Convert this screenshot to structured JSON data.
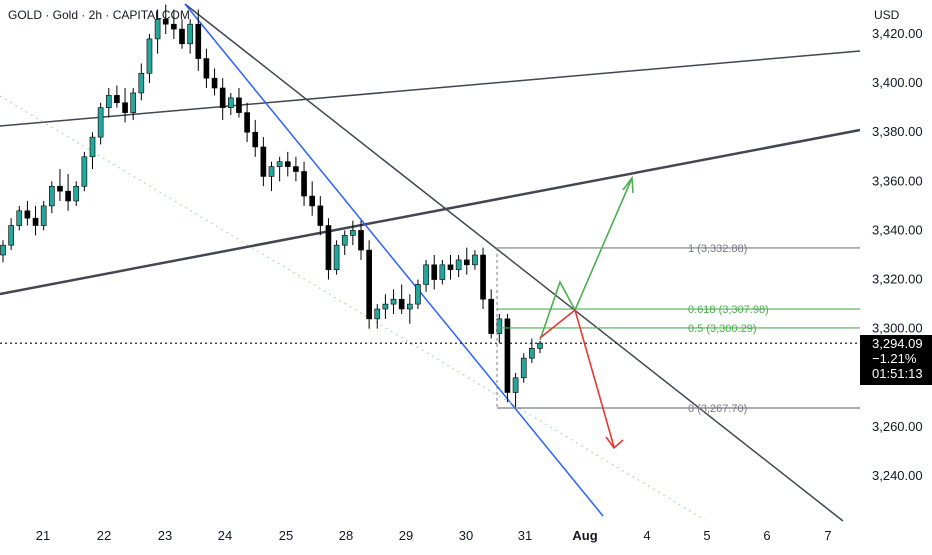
{
  "header": {
    "symbol_title": "GOLD · Gold · 2h · CAPITALCOM",
    "currency": "USD"
  },
  "price_tag": {
    "price": "3,294.09",
    "change": "−1.21%",
    "countdown": "01:51:13"
  },
  "colors": {
    "bull": "#26a69a",
    "bear": "#000000",
    "trendline_dark": "#434651",
    "trendline_blue": "#2962ff",
    "fib_gray": "#787b86",
    "fib_green": "#4caf50",
    "projection_green": "#4caf50",
    "projection_red": "#e53935",
    "dotted_trend": "#a5d6a7"
  },
  "chart_data": {
    "type": "candlestick",
    "title": "GOLD · Gold · 2h · CAPITALCOM",
    "y_axis": {
      "unit": "USD",
      "range": [
        3228,
        3432
      ],
      "ticks": [
        3420,
        3400,
        3380,
        3360,
        3340,
        3320,
        3300,
        3260,
        3240
      ],
      "tick_labels": [
        "3,420.00",
        "3,400.00",
        "3,380.00",
        "3,360.00",
        "3,340.00",
        "3,320.00",
        "3,300.00",
        "3,260.00",
        "3,240.00"
      ]
    },
    "x_axis": {
      "ticks": [
        "21",
        "22",
        "23",
        "24",
        "25",
        "28",
        "29",
        "30",
        "31",
        "Aug",
        "4",
        "5",
        "6",
        "7"
      ]
    },
    "candles": [
      [
        3330,
        3336,
        3327,
        3334
      ],
      [
        3334,
        3345,
        3332,
        3342
      ],
      [
        3342,
        3350,
        3340,
        3348
      ],
      [
        3348,
        3352,
        3342,
        3345
      ],
      [
        3345,
        3350,
        3338,
        3342
      ],
      [
        3342,
        3352,
        3340,
        3350
      ],
      [
        3350,
        3360,
        3347,
        3358
      ],
      [
        3358,
        3365,
        3352,
        3356
      ],
      [
        3356,
        3363,
        3348,
        3352
      ],
      [
        3352,
        3360,
        3350,
        3358
      ],
      [
        3358,
        3372,
        3356,
        3370
      ],
      [
        3370,
        3380,
        3365,
        3378
      ],
      [
        3378,
        3392,
        3375,
        3390
      ],
      [
        3390,
        3398,
        3386,
        3395
      ],
      [
        3395,
        3399,
        3390,
        3392
      ],
      [
        3392,
        3398,
        3384,
        3388
      ],
      [
        3388,
        3398,
        3385,
        3396
      ],
      [
        3396,
        3408,
        3393,
        3404
      ],
      [
        3404,
        3420,
        3400,
        3418
      ],
      [
        3418,
        3430,
        3412,
        3426
      ],
      [
        3426,
        3432,
        3420,
        3424
      ],
      [
        3424,
        3430,
        3418,
        3422
      ],
      [
        3422,
        3426,
        3414,
        3416
      ],
      [
        3416,
        3426,
        3412,
        3424
      ],
      [
        3424,
        3430,
        3405,
        3410
      ],
      [
        3410,
        3414,
        3398,
        3402
      ],
      [
        3402,
        3406,
        3395,
        3398
      ],
      [
        3398,
        3402,
        3385,
        3390
      ],
      [
        3390,
        3396,
        3387,
        3394
      ],
      [
        3394,
        3398,
        3386,
        3388
      ],
      [
        3388,
        3392,
        3376,
        3380
      ],
      [
        3380,
        3385,
        3370,
        3374
      ],
      [
        3374,
        3378,
        3358,
        3362
      ],
      [
        3362,
        3368,
        3356,
        3366
      ],
      [
        3366,
        3370,
        3360,
        3368
      ],
      [
        3368,
        3372,
        3362,
        3366
      ],
      [
        3366,
        3370,
        3360,
        3364
      ],
      [
        3364,
        3368,
        3350,
        3354
      ],
      [
        3354,
        3360,
        3346,
        3350
      ],
      [
        3350,
        3354,
        3338,
        3342
      ],
      [
        3342,
        3345,
        3320,
        3324
      ],
      [
        3324,
        3336,
        3322,
        3334
      ],
      [
        3334,
        3340,
        3330,
        3338
      ],
      [
        3338,
        3344,
        3334,
        3340
      ],
      [
        3340,
        3344,
        3328,
        3332
      ],
      [
        3332,
        3336,
        3300,
        3304
      ],
      [
        3304,
        3310,
        3300,
        3308
      ],
      [
        3308,
        3314,
        3304,
        3310
      ],
      [
        3310,
        3316,
        3306,
        3312
      ],
      [
        3312,
        3318,
        3306,
        3308
      ],
      [
        3308,
        3314,
        3302,
        3310
      ],
      [
        3310,
        3320,
        3308,
        3318
      ],
      [
        3318,
        3328,
        3315,
        3326
      ],
      [
        3326,
        3330,
        3316,
        3320
      ],
      [
        3320,
        3328,
        3318,
        3326
      ],
      [
        3326,
        3330,
        3320,
        3324
      ],
      [
        3324,
        3330,
        3321,
        3328
      ],
      [
        3328,
        3333,
        3322,
        3326
      ],
      [
        3326,
        3332,
        3324,
        3330
      ],
      [
        3330,
        3333,
        3308,
        3312
      ],
      [
        3312,
        3316,
        3296,
        3298
      ],
      [
        3298,
        3306,
        3294,
        3304
      ],
      [
        3304,
        3306,
        3270,
        3274
      ],
      [
        3274,
        3282,
        3268,
        3280
      ],
      [
        3280,
        3290,
        3278,
        3288
      ],
      [
        3288,
        3296,
        3286,
        3292
      ],
      [
        3292,
        3295,
        3290,
        3294.09
      ]
    ]
  },
  "fibonacci": [
    {
      "label": "1 (3,332.88)",
      "value": 3332.88
    },
    {
      "label": "0.618 (3,307.98)",
      "value": 3307.98
    },
    {
      "label": "0.5 (3,300.29)",
      "value": 3300.29
    },
    {
      "label": "0 (3,267.70)",
      "value": 3267.7
    }
  ]
}
